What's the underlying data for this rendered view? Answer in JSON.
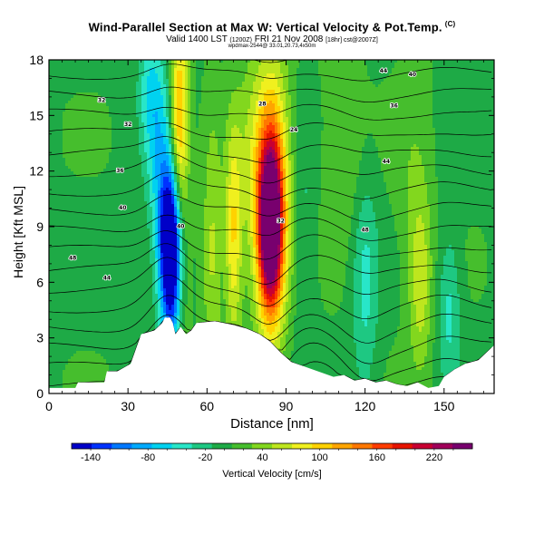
{
  "header": {
    "title": "Wind-Parallel Section at Max W: Vertical Velocity & Pot.Temp.",
    "copyright_mark": "(C)",
    "subtitle_valid": "Valid 1400 LST",
    "subtitle_time": "(1200Z)",
    "subtitle_date": "FRI 21 Nov 2008",
    "subtitle_run": "[18hr] cst@2007Z]",
    "info_line": "wpdmax-2544@ 33.01,20.73,4x50m"
  },
  "chart_data": {
    "type": "heatmap",
    "title": "Wind-Parallel Section at Max W: Vertical Velocity & Pot.Temp.",
    "xlabel": "Distance [nm]",
    "ylabel": "Height [Kft MSL]",
    "xlim": [
      0,
      169
    ],
    "ylim": [
      0,
      18
    ],
    "xticks": [
      "0",
      "30",
      "60",
      "90",
      "120",
      "150"
    ],
    "yticks": [
      "0",
      "3",
      "6",
      "9",
      "12",
      "15",
      "18"
    ],
    "colorbar": {
      "label": "Vertical Velocity [cm/s]",
      "tick_labels": [
        "-140",
        "-80",
        "-20",
        "40",
        "100",
        "160",
        "220"
      ],
      "range": [
        -160,
        260
      ],
      "colors": [
        "#0000c8",
        "#0032ff",
        "#0078ff",
        "#00aaff",
        "#00d2f0",
        "#28e6c8",
        "#1ec882",
        "#1eaa46",
        "#46be2d",
        "#82d71e",
        "#bee61e",
        "#f0f01e",
        "#ffd200",
        "#ffa500",
        "#ff7800",
        "#ff3c00",
        "#e61400",
        "#c80032",
        "#a0005a",
        "#78006e"
      ]
    },
    "terrain_kft": [
      [
        0,
        0.3
      ],
      [
        10,
        0.3
      ],
      [
        11,
        0.6
      ],
      [
        21,
        0.6
      ],
      [
        22,
        1.2
      ],
      [
        26,
        1.2
      ],
      [
        31,
        1.6
      ],
      [
        33,
        2.4
      ],
      [
        35,
        3.2
      ],
      [
        40,
        3.4
      ],
      [
        43,
        3.8
      ],
      [
        44,
        4.1
      ],
      [
        46,
        4.1
      ],
      [
        47,
        3.8
      ],
      [
        48,
        3.2
      ],
      [
        50,
        3.6
      ],
      [
        52,
        3.2
      ],
      [
        54,
        3.4
      ],
      [
        56,
        3.8
      ],
      [
        63,
        3.9
      ],
      [
        70,
        3.7
      ],
      [
        75,
        3.5
      ],
      [
        80,
        3.2
      ],
      [
        84,
        2.8
      ],
      [
        88,
        2.2
      ],
      [
        92,
        1.7
      ],
      [
        96,
        1.5
      ],
      [
        100,
        1.3
      ],
      [
        104,
        1.1
      ],
      [
        108,
        0.9
      ],
      [
        112,
        1.0
      ],
      [
        116,
        0.7
      ],
      [
        120,
        0.8
      ],
      [
        124,
        0.6
      ],
      [
        128,
        0.7
      ],
      [
        132,
        0.5
      ],
      [
        136,
        0.4
      ],
      [
        140,
        0.6
      ],
      [
        144,
        0.3
      ],
      [
        148,
        0.4
      ],
      [
        150,
        0.9
      ],
      [
        154,
        1.3
      ],
      [
        158,
        1.6
      ],
      [
        163,
        1.8
      ],
      [
        166,
        2.2
      ],
      [
        169,
        2.6
      ]
    ],
    "vertical_velocity_features": [
      {
        "x_nm": 47,
        "z_kft": 6.5,
        "value_cms": -150,
        "x_width_nm": 3.2,
        "z_width_kft": 3.5
      },
      {
        "x_nm": 46,
        "z_kft": 8.5,
        "value_cms": -120,
        "x_width_nm": 3.0,
        "z_width_kft": 2.6
      },
      {
        "x_nm": 42,
        "z_kft": 13.0,
        "value_cms": -60,
        "x_width_nm": 3.5,
        "z_width_kft": 4.0
      },
      {
        "x_nm": 38,
        "z_kft": 16.5,
        "value_cms": -45,
        "x_width_nm": 3.0,
        "z_width_kft": 2.5
      },
      {
        "x_nm": 50,
        "z_kft": 9.5,
        "value_cms": 75,
        "x_width_nm": 2.4,
        "z_width_kft": 8.5
      },
      {
        "x_nm": 49,
        "z_kft": 15.0,
        "value_cms": 65,
        "x_width_nm": 2.2,
        "z_width_kft": 3.0
      },
      {
        "x_nm": 84,
        "z_kft": 9.0,
        "value_cms": 240,
        "x_width_nm": 3.0,
        "z_width_kft": 3.0
      },
      {
        "x_nm": 85,
        "z_kft": 10.5,
        "value_cms": 130,
        "x_width_nm": 4.5,
        "z_width_kft": 5.0
      },
      {
        "x_nm": 78,
        "z_kft": 12.0,
        "value_cms": 40,
        "x_width_nm": 5.0,
        "z_width_kft": 5.0
      },
      {
        "x_nm": 70,
        "z_kft": 8.5,
        "value_cms": 85,
        "x_width_nm": 2.2,
        "z_width_kft": 4.0
      },
      {
        "x_nm": 62,
        "z_kft": 7.5,
        "value_cms": 50,
        "x_width_nm": 2.5,
        "z_width_kft": 5.0
      },
      {
        "x_nm": 97,
        "z_kft": 8.0,
        "value_cms": -25,
        "x_width_nm": 3.0,
        "z_width_kft": 5.0
      },
      {
        "x_nm": 120,
        "z_kft": 6.0,
        "value_cms": -45,
        "x_width_nm": 3.5,
        "z_width_kft": 4.5
      },
      {
        "x_nm": 141,
        "z_kft": 6.0,
        "value_cms": 55,
        "x_width_nm": 3.0,
        "z_width_kft": 3.5
      },
      {
        "x_nm": 152,
        "z_kft": 4.5,
        "value_cms": -45,
        "x_width_nm": 3.0,
        "z_width_kft": 3.0
      },
      {
        "x_nm": 112,
        "z_kft": 13.0,
        "value_cms": 25,
        "x_width_nm": 6.0,
        "z_width_kft": 4.0
      },
      {
        "x_nm": 138,
        "z_kft": 12.0,
        "value_cms": 18,
        "x_width_nm": 5.0,
        "z_width_kft": 5.0
      }
    ],
    "contour_labels": [
      "48",
      "44",
      "40",
      "36",
      "32",
      "40",
      "32",
      "28",
      "24",
      "44",
      "48",
      "36",
      "40",
      "44",
      "32"
    ]
  }
}
